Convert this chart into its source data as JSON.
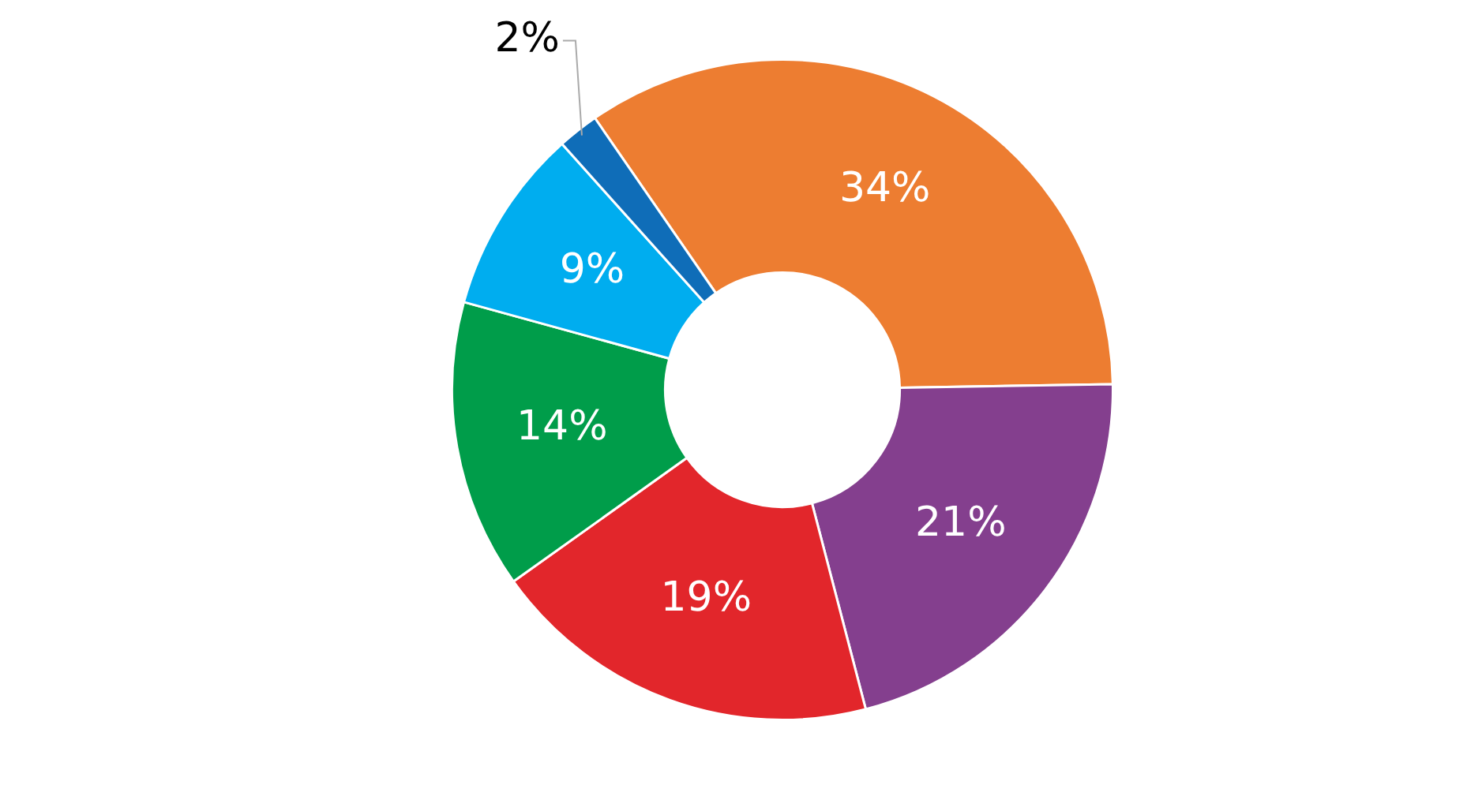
{
  "chart_data": {
    "type": "donut",
    "categories": [
      null,
      null,
      null,
      null,
      null,
      null
    ],
    "values": [
      34,
      21,
      19,
      14,
      9,
      2
    ],
    "colors": [
      "#ed7d31",
      "#843f8e",
      "#e2262b",
      "#009d4a",
      "#00adef",
      "#0f6db8"
    ],
    "value_labels": [
      "34%",
      "21%",
      "19%",
      "14%",
      "9%",
      "2%"
    ],
    "legend": false
  }
}
